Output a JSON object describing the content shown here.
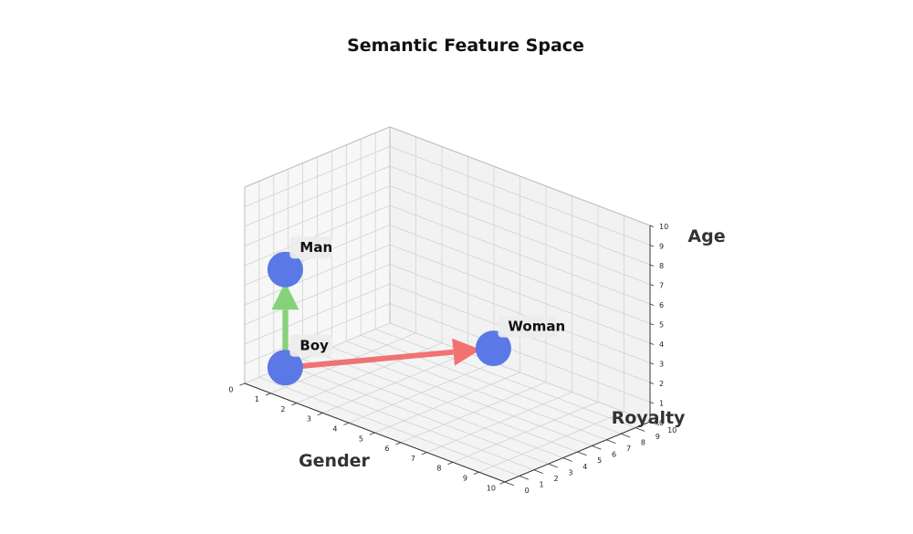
{
  "chart_data": {
    "type": "scatter",
    "projection": "3d",
    "title": "Semantic Feature Space",
    "xlabel": "Gender",
    "ylabel": "Royalty",
    "zlabel": "Age",
    "xlim": [
      0,
      10
    ],
    "ylim": [
      0,
      10
    ],
    "zlim": [
      0,
      10
    ],
    "ticks": [
      "0",
      "1",
      "2",
      "3",
      "4",
      "5",
      "6",
      "7",
      "8",
      "9",
      "10"
    ],
    "grid": true,
    "colors": {
      "point": "#5a78e6",
      "arrow_age": "#86d27a",
      "arrow_gender": "#f27272",
      "label_bg": "#ececec",
      "pane_left": "#f7f7f7",
      "pane_back": "#f2f2f2",
      "pane_floor": "#f4f4f4",
      "grid": "#d2d2d2"
    },
    "points": [
      {
        "label": "Boy",
        "x": 1,
        "y": 1,
        "z": 1
      },
      {
        "label": "Man",
        "x": 1,
        "y": 1,
        "z": 6
      },
      {
        "label": "Woman",
        "x": 9,
        "y": 1,
        "z": 6
      }
    ],
    "arrows": [
      {
        "from": "Boy",
        "to": "Man",
        "color_key": "arrow_age"
      },
      {
        "from": "Boy",
        "to": "Woman",
        "color_key": "arrow_gender"
      }
    ]
  }
}
